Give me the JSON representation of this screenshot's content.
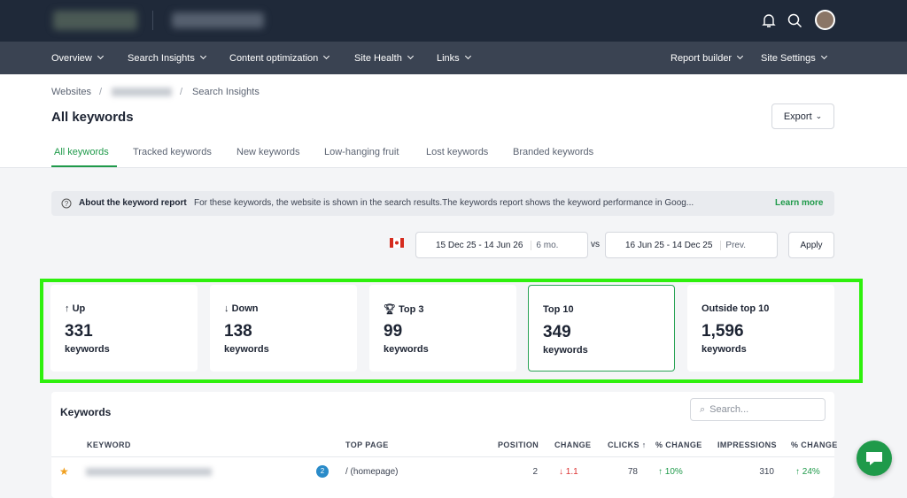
{
  "nav": {
    "items": [
      "Overview",
      "Search Insights",
      "Content optimization",
      "Site Health",
      "Links"
    ],
    "right_items": [
      "Report builder",
      "Site Settings"
    ]
  },
  "breadcrumb": {
    "root": "Websites",
    "current": "Search Insights"
  },
  "header": {
    "title": "All keywords",
    "export": "Export"
  },
  "tabs": [
    "All keywords",
    "Tracked keywords",
    "New keywords",
    "Low-hanging fruit",
    "Lost keywords",
    "Branded keywords"
  ],
  "info": {
    "title": "About the keyword report",
    "text": "For these keywords, the website is shown in the search results.The keywords report shows the keyword performance in Goog...",
    "link": "Learn more"
  },
  "dates": {
    "current": "15 Dec 25 - 14 Jun 26",
    "period": "6 mo.",
    "vs": "vs",
    "compare": "16 Jun 25 - 14 Dec 25",
    "compare_period": "Prev.",
    "apply": "Apply"
  },
  "cards": [
    {
      "label": "Up",
      "value": "331",
      "unit": "keywords"
    },
    {
      "label": "Down",
      "value": "138",
      "unit": "keywords"
    },
    {
      "label": "Top 3",
      "value": "99",
      "unit": "keywords"
    },
    {
      "label": "Top 10",
      "value": "349",
      "unit": "keywords"
    },
    {
      "label": "Outside top 10",
      "value": "1,596",
      "unit": "keywords"
    }
  ],
  "table": {
    "title": "Keywords",
    "search_placeholder": "Search...",
    "columns": [
      "KEYWORD",
      "TOP PAGE",
      "POSITION",
      "CHANGE",
      "CLICKS",
      "% CHANGE",
      "IMPRESSIONS",
      "% CHANGE"
    ],
    "rows": [
      {
        "badge": "2",
        "top_page": "/ (homepage)",
        "position": "2",
        "change": "1.1",
        "clicks": "78",
        "clicks_change": "10%",
        "impressions": "310",
        "impressions_change": "24%"
      }
    ]
  }
}
